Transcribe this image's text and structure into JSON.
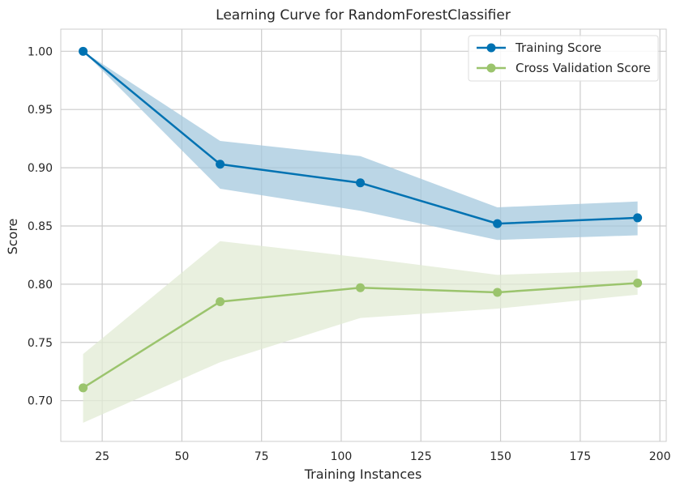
{
  "chart_data": {
    "type": "line",
    "title": "Learning Curve for RandomForestClassifier",
    "xlabel": "Training Instances",
    "ylabel": "Score",
    "xlim": [
      12,
      202
    ],
    "ylim": [
      0.665,
      1.019
    ],
    "xticks": [
      25,
      50,
      75,
      100,
      125,
      150,
      175,
      200
    ],
    "yticks": [
      0.7,
      0.75,
      0.8,
      0.85,
      0.9,
      0.95,
      1.0
    ],
    "xtick_labels": [
      "25",
      "50",
      "75",
      "100",
      "125",
      "150",
      "175",
      "200"
    ],
    "ytick_labels": [
      "0.70",
      "0.75",
      "0.80",
      "0.85",
      "0.90",
      "0.95",
      "1.00"
    ],
    "grid": true,
    "legend_position": "top-right",
    "x": [
      19,
      62,
      106,
      149,
      193
    ],
    "series": [
      {
        "name": "Training Score",
        "color": "#0072b2",
        "band_color": "#a4c8dd",
        "values": [
          1.0,
          0.903,
          0.887,
          0.852,
          0.857
        ],
        "upper": [
          1.0,
          0.923,
          0.91,
          0.866,
          0.871
        ],
        "lower": [
          1.0,
          0.882,
          0.863,
          0.838,
          0.842
        ]
      },
      {
        "name": "Cross Validation Score",
        "color": "#9bc46d",
        "band_color": "#e1ebd4",
        "values": [
          0.711,
          0.785,
          0.797,
          0.793,
          0.801
        ],
        "upper": [
          0.74,
          0.837,
          0.823,
          0.808,
          0.812
        ],
        "lower": [
          0.681,
          0.733,
          0.771,
          0.779,
          0.791
        ]
      }
    ]
  }
}
